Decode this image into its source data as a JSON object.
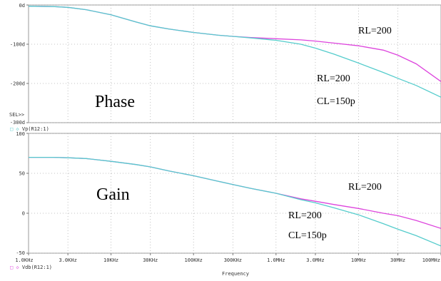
{
  "chart_data": [
    {
      "type": "line",
      "name": "phase",
      "title": "Phase",
      "x_scale": "log",
      "ylim": [
        -300,
        0
      ],
      "yticks": [
        {
          "value": 0,
          "label": "0d"
        },
        {
          "value": -100,
          "label": "-100d"
        },
        {
          "value": -200,
          "label": "-200d"
        },
        {
          "value": -300,
          "label": "-300d"
        }
      ],
      "sel_label": "SEL>>",
      "trace_label": "Vp(R12:1)",
      "grid": true,
      "series": [
        {
          "color": "#dd44dd",
          "x": [
            1000,
            2000,
            3000,
            5000,
            10000,
            20000,
            30000,
            50000,
            100000,
            200000,
            300000,
            500000,
            1000000,
            2000000,
            3000000,
            5000000,
            10000000,
            20000000,
            30000000,
            50000000,
            100000000
          ],
          "y": [
            -3,
            -4,
            -6,
            -12,
            -25,
            -43,
            -53,
            -61,
            -70,
            -77,
            -80,
            -83,
            -86,
            -89,
            -92,
            -97,
            -104,
            -115,
            -128,
            -150,
            -195
          ]
        },
        {
          "color": "#55cccc",
          "x": [
            1000,
            2000,
            3000,
            5000,
            10000,
            20000,
            30000,
            50000,
            100000,
            200000,
            300000,
            500000,
            1000000,
            2000000,
            3000000,
            5000000,
            10000000,
            20000000,
            30000000,
            50000000,
            100000000
          ],
          "y": [
            -3,
            -4,
            -6,
            -12,
            -25,
            -43,
            -53,
            -61,
            -70,
            -77,
            -80,
            -84,
            -90,
            -100,
            -110,
            -125,
            -148,
            -172,
            -187,
            -205,
            -235
          ]
        }
      ],
      "annotations": [
        {
          "id": "a1",
          "text": "RL=200"
        },
        {
          "id": "a2",
          "text": "RL=200"
        },
        {
          "id": "a3",
          "text": "CL=150p"
        }
      ]
    },
    {
      "type": "line",
      "name": "gain",
      "title": "Gain",
      "x_scale": "log",
      "ylim": [
        -50,
        100
      ],
      "yticks": [
        {
          "value": 100,
          "label": "100"
        },
        {
          "value": 50,
          "label": "50"
        },
        {
          "value": 0,
          "label": "0"
        },
        {
          "value": -50,
          "label": "-50"
        }
      ],
      "xticks": [
        {
          "value": 1000,
          "label": "1.0KHz"
        },
        {
          "value": 3000,
          "label": "3.0KHz"
        },
        {
          "value": 10000,
          "label": "10KHz"
        },
        {
          "value": 30000,
          "label": "30KHz"
        },
        {
          "value": 100000,
          "label": "100KHz"
        },
        {
          "value": 300000,
          "label": "300KHz"
        },
        {
          "value": 1000000,
          "label": "1.0MHz"
        },
        {
          "value": 3000000,
          "label": "3.0MHz"
        },
        {
          "value": 10000000,
          "label": "10MHz"
        },
        {
          "value": 30000000,
          "label": "30MHz"
        },
        {
          "value": 100000000,
          "label": "100MHz"
        }
      ],
      "xlabel": "Frequency",
      "trace_label": "Vdb(R12:1)",
      "grid": true,
      "series": [
        {
          "color": "#dd44dd",
          "x": [
            1000,
            2000,
            3000,
            5000,
            10000,
            20000,
            30000,
            50000,
            100000,
            200000,
            300000,
            500000,
            1000000,
            2000000,
            3000000,
            5000000,
            10000000,
            20000000,
            30000000,
            50000000,
            100000000
          ],
          "y": [
            70,
            70,
            69.5,
            68.5,
            65,
            61,
            58,
            53,
            47,
            40,
            36,
            31,
            25,
            18,
            15,
            11,
            6,
            0,
            -3,
            -9,
            -19
          ]
        },
        {
          "color": "#55cccc",
          "x": [
            1000,
            2000,
            3000,
            5000,
            10000,
            20000,
            30000,
            50000,
            100000,
            200000,
            300000,
            500000,
            1000000,
            2000000,
            3000000,
            5000000,
            10000000,
            20000000,
            30000000,
            50000000,
            100000000
          ],
          "y": [
            70,
            70,
            69.5,
            68.5,
            65,
            61,
            58,
            53,
            47,
            40,
            36,
            31,
            25,
            17,
            13,
            7,
            -2,
            -13,
            -20,
            -28,
            -41
          ]
        }
      ],
      "annotations": [
        {
          "id": "b1",
          "text": "RL=200"
        },
        {
          "id": "b2",
          "text": "RL=200"
        },
        {
          "id": "b3",
          "text": "CL=150p"
        }
      ]
    }
  ]
}
